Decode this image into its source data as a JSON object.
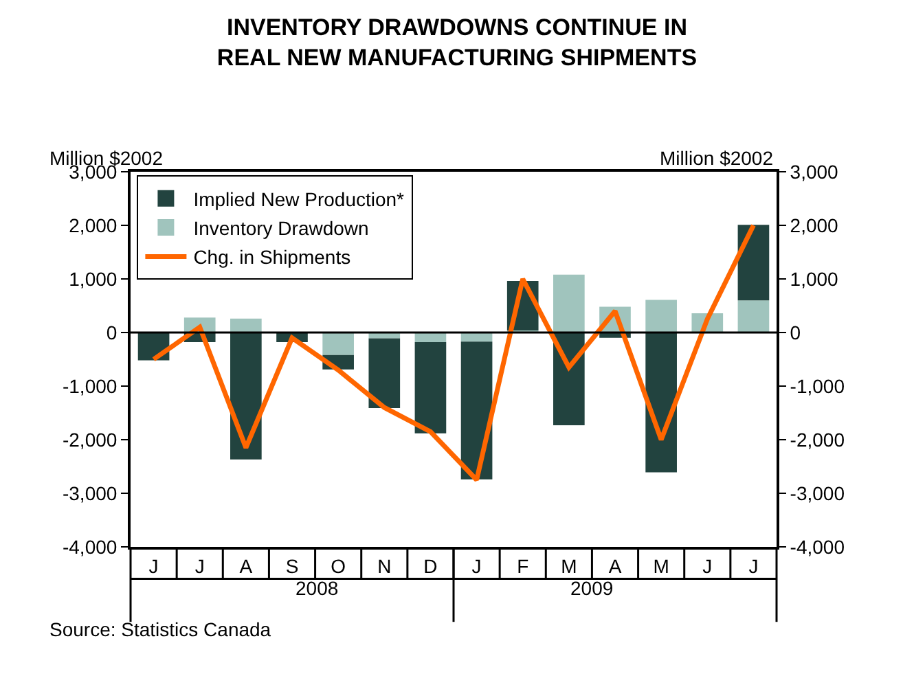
{
  "chart_data": {
    "type": "bar",
    "title": "INVENTORY DRAWDOWNS CONTINUE IN\nREAL NEW MANUFACTURING SHIPMENTS",
    "ylabel": "Million $2002",
    "y2label": "Million $2002",
    "categories": [
      "J",
      "J",
      "A",
      "S",
      "O",
      "N",
      "D",
      "J",
      "F",
      "M",
      "A",
      "M",
      "J",
      "J"
    ],
    "stacked": true,
    "series": [
      {
        "name": "Inventory Drawdown",
        "color": "#a0c4bd",
        "values": [
          0,
          280,
          260,
          0,
          -420,
          -110,
          -180,
          -170,
          40,
          1080,
          480,
          610,
          360,
          600
        ]
      },
      {
        "name": "Implied New Production*",
        "color": "#22433f",
        "values": [
          -520,
          -180,
          -2370,
          -180,
          -270,
          -1300,
          -1700,
          -2570,
          920,
          -1730,
          -100,
          -2610,
          0,
          1410
        ]
      },
      {
        "name": "Chg. in Shipments",
        "type": "line",
        "color": "#ff6600",
        "values": [
          -500,
          100,
          -2150,
          -100,
          -700,
          -1400,
          -1850,
          -2750,
          1000,
          -650,
          400,
          -2000,
          250,
          2000
        ]
      }
    ],
    "ylim": [
      -4000,
      3000
    ],
    "yticks": [
      {
        "value": -4000,
        "label": "-4,000"
      },
      {
        "value": -3000,
        "label": "-3,000"
      },
      {
        "value": -2000,
        "label": "-2,000"
      },
      {
        "value": -1000,
        "label": "-1,000"
      },
      0,
      {
        "value": 1000,
        "label": "1,000"
      },
      {
        "value": 2000,
        "label": "2,000"
      },
      {
        "value": 3000,
        "label": "3,000"
      }
    ],
    "y2lim": [
      -4000,
      3000
    ],
    "y2ticks": [
      {
        "value": -4000,
        "label": "-4,000"
      },
      {
        "value": -3000,
        "label": "-3,000"
      },
      {
        "value": -2000,
        "label": "-2,000"
      },
      {
        "value": -1000,
        "label": "-1,000"
      },
      0,
      {
        "value": 1000,
        "label": "1,000"
      },
      {
        "value": 2000,
        "label": "2,000"
      },
      {
        "value": 3000,
        "label": "3,000"
      }
    ],
    "ref_lines": [
      {
        "axis": "y",
        "value": 0,
        "color": "#000000"
      }
    ],
    "grid": false,
    "legend": "top left",
    "marker": "none",
    "line_style": "solid",
    "annotations": [
      "2008",
      "2009",
      "Source: Statistics Canada"
    ]
  }
}
